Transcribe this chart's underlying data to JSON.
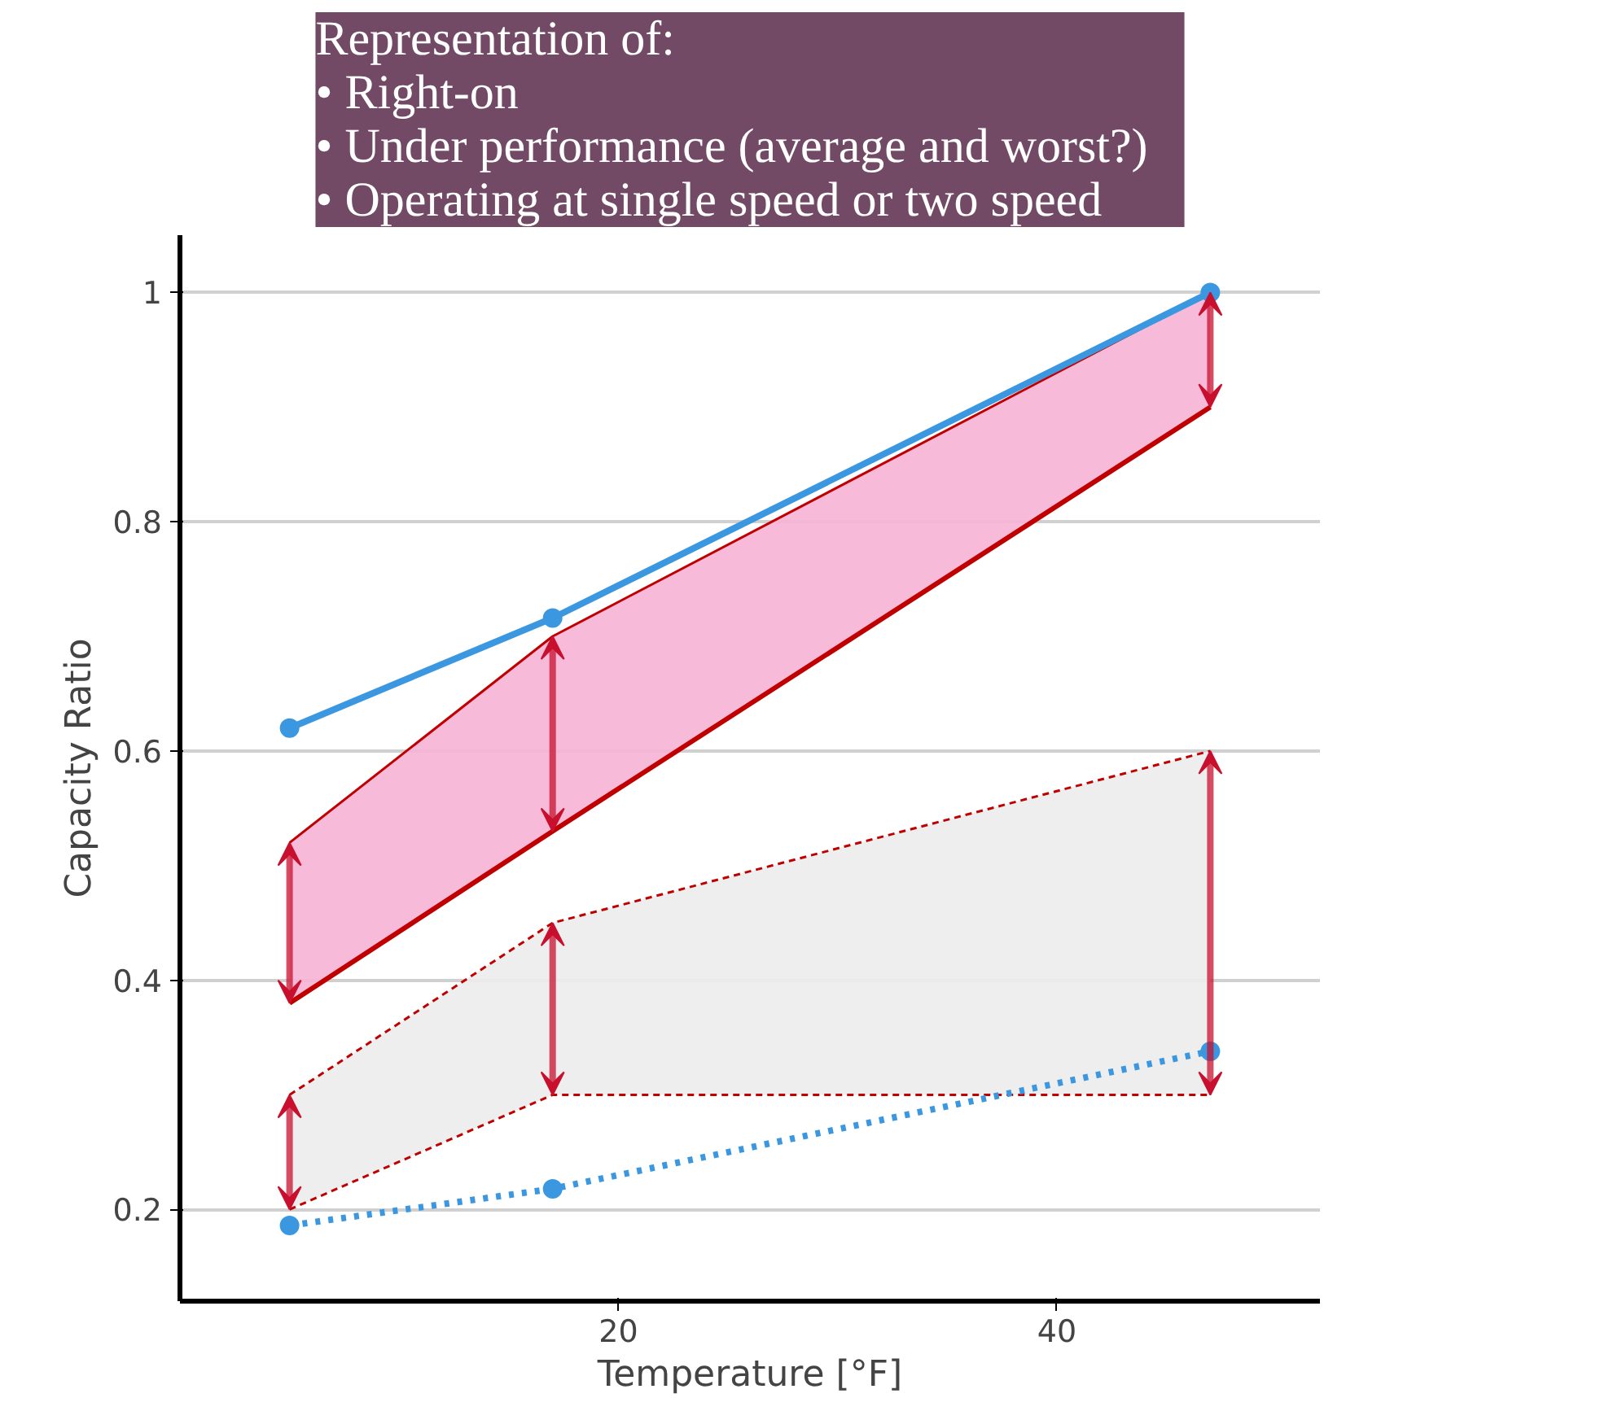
{
  "chart_data": {
    "type": "line",
    "title": "Representation of:\n•    Right-on\n•    Under performance (average and worst?)\n•    Operating at single speed or two speed",
    "xlabel": "Temperature [°F]",
    "ylabel": "Capacity Ratio",
    "x": [
      5,
      17,
      47
    ],
    "series": [
      {
        "color": "#c00000",
        "values": [
          0.52,
          0.7,
          1.0
        ],
        "lower": [
          0.38,
          0.53,
          0.9
        ],
        "upper": [
          0.52,
          0.7,
          1.0
        ],
        "line_style": "solid"
      },
      {
        "color": "#c00000",
        "values": [
          0.3,
          0.45,
          0.6
        ],
        "lower": [
          0.2,
          0.3,
          0.3
        ],
        "upper": [
          0.3,
          0.45,
          0.6
        ],
        "line_style": "dashed"
      },
      {
        "color": "#3b98e0",
        "values": [
          0.62,
          0.716,
          1.0
        ],
        "line_style": "solid",
        "marker": "circle"
      },
      {
        "color": "#3b98e0",
        "values": [
          0.186,
          0.218,
          0.338
        ],
        "line_style": "dotted",
        "marker": "circle"
      }
    ],
    "xlim": [
      0,
      52
    ],
    "ylim": [
      0.12,
      1.05
    ],
    "xticks": [
      20,
      40
    ],
    "yticks": [
      0.2,
      0.4,
      0.6,
      0.8,
      1
    ],
    "grid": "y"
  }
}
